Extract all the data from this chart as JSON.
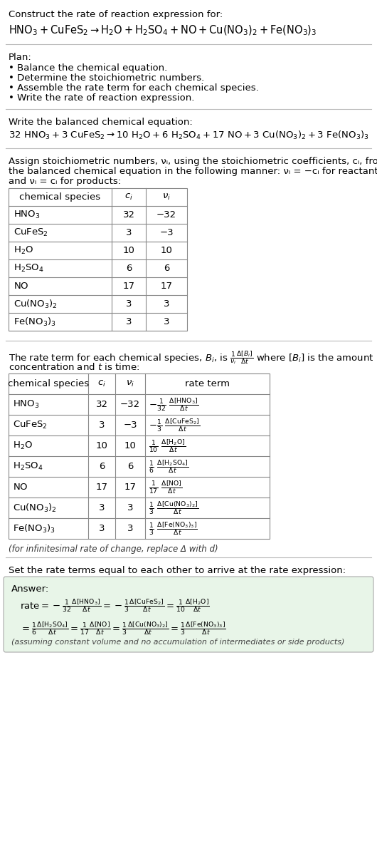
{
  "bg_color": "#ffffff",
  "text_color": "#000000",
  "font_size": 9.5,
  "sections": {
    "title": "Construct the rate of reaction expression for:",
    "rxn_unbal_parts": [
      "HNO",
      "3",
      " + CuFeS",
      "2",
      " → H",
      "2",
      "O + H",
      "2",
      "SO",
      "4",
      " + NO + Cu(NO",
      "3",
      ")",
      "2",
      " + Fe(NO",
      "3",
      ")",
      "3"
    ],
    "plan_header": "Plan:",
    "plan_items": [
      "• Balance the chemical equation.",
      "• Determine the stoichiometric numbers.",
      "• Assemble the rate term for each chemical species.",
      "• Write the rate of reaction expression."
    ],
    "balanced_header": "Write the balanced chemical equation:",
    "stoich_header_line1": "Assign stoichiometric numbers, νᵢ, using the stoichiometric coefficients, cᵢ, from",
    "stoich_header_line2": "the balanced chemical equation in the following manner: νᵢ = −cᵢ for reactants",
    "stoich_header_line3": "and νᵢ = cᵢ for products:",
    "rate_term_line1": "The rate term for each chemical species, Bᵢ, is",
    "rate_term_line2": "concentration and t is time:",
    "infinitesimal_note": "(for infinitesimal rate of change, replace Δ with d)",
    "rate_expr_header": "Set the rate terms equal to each other to arrive at the rate expression:",
    "answer_label": "Answer:",
    "answer_note": "(assuming constant volume and no accumulation of intermediates or side products)"
  },
  "table1_species": [
    "HNO₃",
    "CuFeS₂",
    "H₂O",
    "H₂SO₄",
    "NO",
    "Cu(NO₃)₂",
    "Fe(NO₃)₃"
  ],
  "table1_ci": [
    "32",
    "3",
    "10",
    "6",
    "17",
    "3",
    "3"
  ],
  "table1_vi": [
    "−32",
    "−3",
    "10",
    "6",
    "17",
    "3",
    "3"
  ],
  "table2_species": [
    "HNO₃",
    "CuFeS₂",
    "H₂O",
    "H₂SO₄",
    "NO",
    "Cu(NO₃)₂",
    "Fe(NO₃)₃"
  ],
  "table2_ci": [
    "32",
    "3",
    "10",
    "6",
    "17",
    "3",
    "3"
  ],
  "table2_vi": [
    "−32",
    "−3",
    "10",
    "6",
    "17",
    "3",
    "3"
  ],
  "answer_box_bg": "#e8f5e8",
  "answer_box_border": "#aaccaa"
}
